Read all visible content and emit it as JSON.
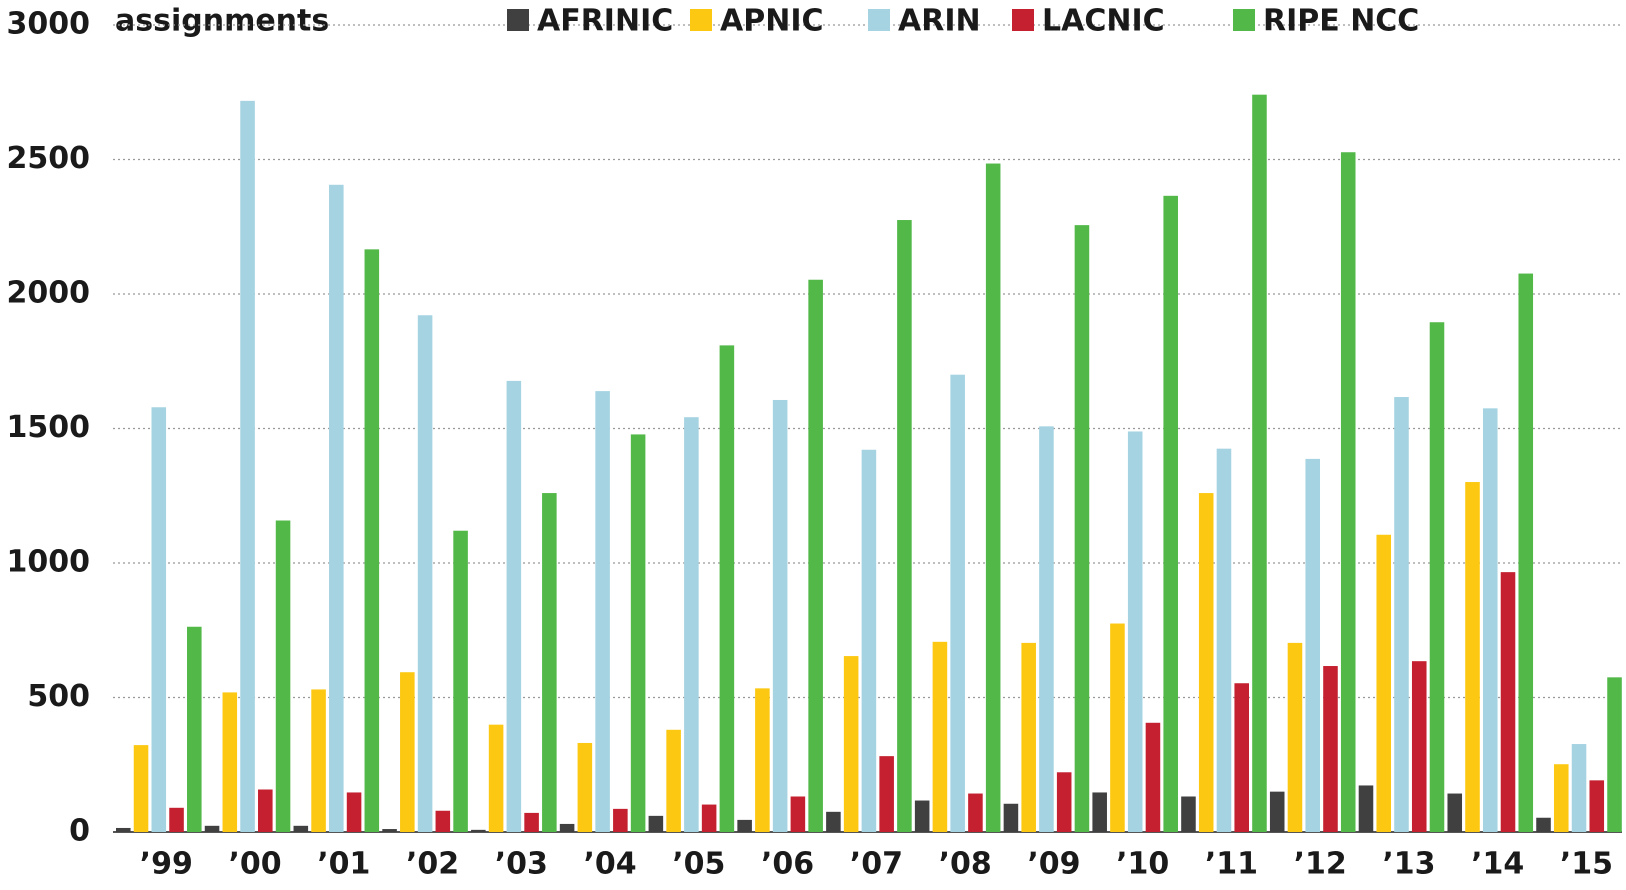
{
  "chart_data": {
    "type": "bar",
    "y_label": "assignments",
    "categories": [
      "’99",
      "’00",
      "’01",
      "’02",
      "’03",
      "’04",
      "’05",
      "’06",
      "’07",
      "’08",
      "’09",
      "’10",
      "’11",
      "’12",
      "’13",
      "’14",
      "’15"
    ],
    "series": [
      {
        "name": "AFRINIC",
        "color": "#404040",
        "values": [
          15,
          23,
          23,
          11,
          8,
          30,
          60,
          45,
          75,
          117,
          105,
          147,
          132,
          150,
          173,
          143,
          53
        ]
      },
      {
        "name": "APNIC",
        "color": "#fcc812",
        "values": [
          323,
          519,
          530,
          594,
          399,
          331,
          380,
          534,
          654,
          707,
          703,
          775,
          1260,
          703,
          1105,
          1301,
          252
        ]
      },
      {
        "name": "ARIN",
        "color": "#a5d3e2",
        "values": [
          1579,
          2718,
          2406,
          1921,
          1677,
          1639,
          1542,
          1606,
          1421,
          1700,
          1508,
          1489,
          1425,
          1387,
          1617,
          1575,
          327
        ]
      },
      {
        "name": "LACNIC",
        "color": "#c4202f",
        "values": [
          90,
          158,
          147,
          79,
          71,
          86,
          102,
          132,
          282,
          143,
          222,
          406,
          553,
          617,
          635,
          966,
          192
        ]
      },
      {
        "name": "RIPE NCC",
        "color": "#52b848",
        "values": [
          763,
          1158,
          2166,
          1120,
          1260,
          1478,
          1809,
          2053,
          2275,
          2485,
          2256,
          2365,
          2741,
          2527,
          1895,
          2076,
          575
        ]
      }
    ],
    "ylim": [
      0,
      3000
    ],
    "yticks": [
      0,
      500,
      1000,
      1500,
      2000,
      2500,
      3000
    ],
    "grid": true
  }
}
